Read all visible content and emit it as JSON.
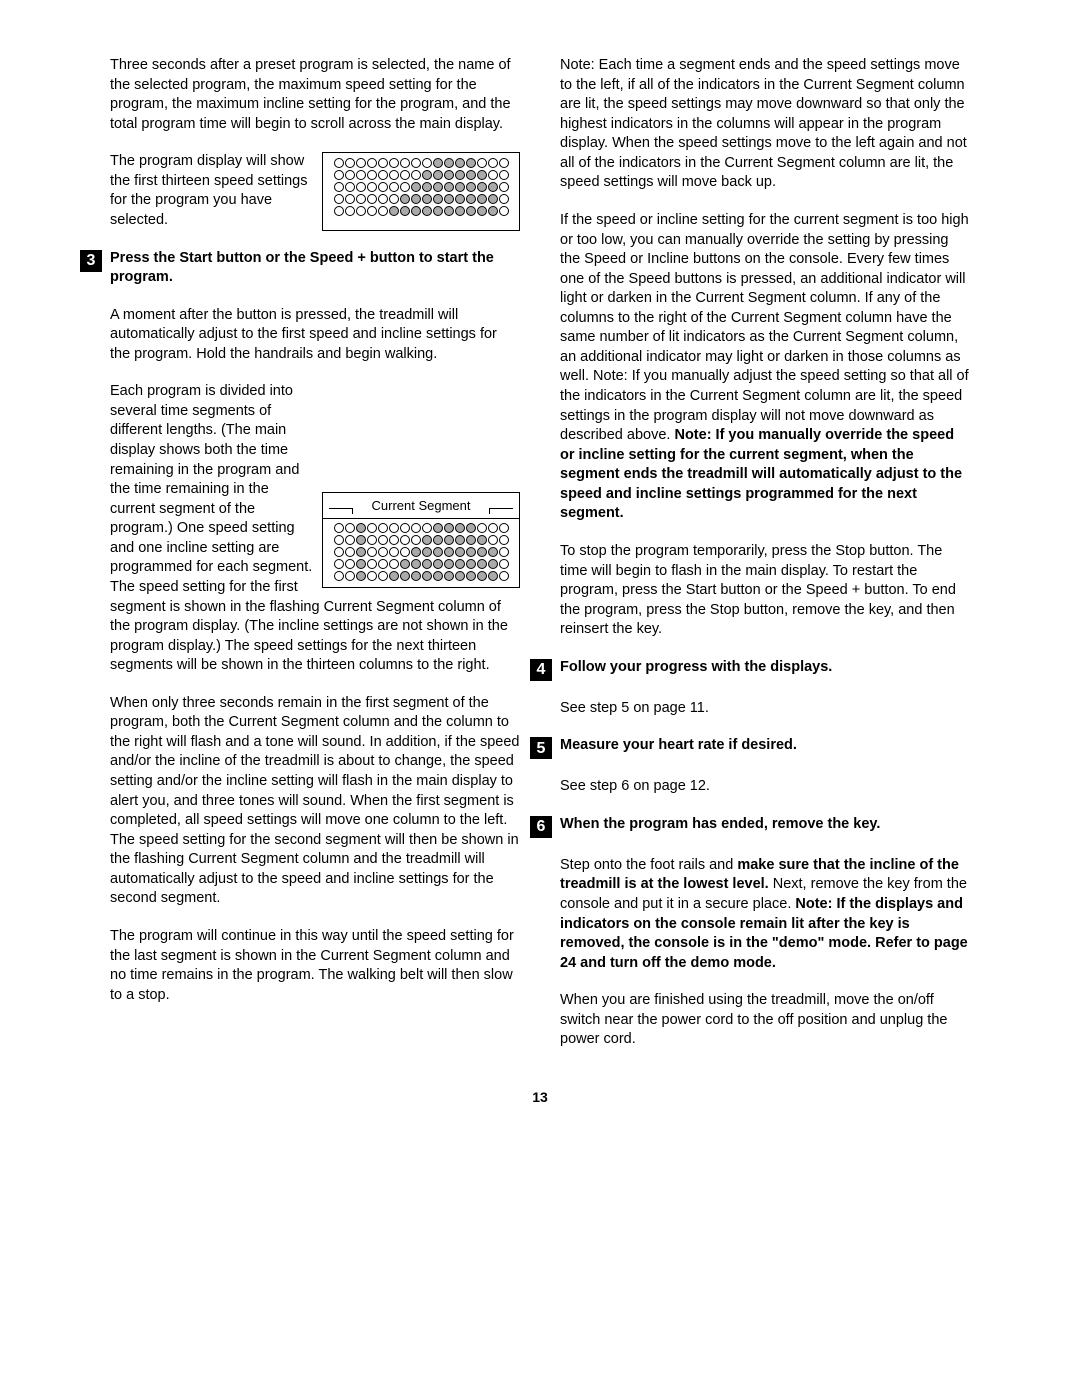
{
  "left": {
    "p1": "Three seconds after a preset program is selected, the name of the selected program, the maximum speed setting for the program, the maximum incline setting for the program, and the total program time will begin to scroll across the main display.",
    "p2": "The program display will show the first thirteen speed settings for the program you have selected.",
    "step3_title": "Press the Start button or the Speed + button to start the program.",
    "p3": "A moment after the button is pressed, the treadmill will automatically adjust to the first speed and incline settings for the program. Hold the handrails and begin walking.",
    "p4": "Each program is divided into several time segments of different lengths. (The main display shows both the time remaining in the program and the time remaining in the current segment of the program.) One speed setting and one incline setting are programmed for each segment. The speed setting for the first segment is shown in the flashing Current Segment column of the program display. (The incline settings are not shown in the program display.) The speed settings for the next thirteen segments will be shown in the thirteen columns to the right.",
    "p5": "When only three seconds remain in the first segment of the program, both the Current Segment column and the column to the right will flash and a tone will sound. In addition, if the speed and/or the incline of the treadmill is about to change, the speed setting and/or the incline setting will flash in the main display to alert you, and three tones will sound. When the first segment is completed, all speed settings will move one column to the left. The speed setting for the second segment will then be shown in the flashing Current Segment column and the treadmill will automatically adjust to the speed and incline settings for the second segment.",
    "p6": "The program will continue in this way until the speed setting for the last segment is shown in the Current Segment column and no time remains in the program. The walking belt will then slow to a stop.",
    "segment_label": "Current Segment"
  },
  "right": {
    "p1": "Note: Each time a segment ends and the speed settings move to the left, if all of the indicators in the Current Segment column are lit, the speed settings may move downward so that only the highest indicators in the columns will appear in the program display. When the speed settings move to the left again and not all of the indicators in the Current Segment column are lit, the speed settings will move back up.",
    "p2a": "If the speed or incline setting for the current segment is too high or too low, you can manually override the setting by pressing the Speed or Incline buttons on the console. Every few times one of the Speed buttons is pressed, an additional indicator will light or darken in the Current Segment column. If any of the columns to the right of the Current Segment column have the same number of lit indicators as the Current Segment column, an additional indicator may light or darken in those columns as well. Note: If you manually adjust the speed setting so that all of the indicators in the Current Segment column are lit, the speed settings in the program display will not move downward as described above. ",
    "p2b": "Note: If you manually override the speed or incline setting for the current segment, when the segment ends the treadmill will automatically adjust to the speed and incline settings programmed for the next segment.",
    "p3": "To stop the program temporarily, press the Stop button. The time will begin to flash in the main display. To restart the program, press the Start button or the Speed + button. To end the program, press the Stop button, remove the key, and then reinsert the key.",
    "step4_title": "Follow your progress with the displays.",
    "p4": "See step 5 on page 11.",
    "step5_title": "Measure your heart rate if desired.",
    "p5": "See step 6 on page 12.",
    "step6_title": "When the program has ended, remove the key.",
    "p6a": "Step onto the foot rails and ",
    "p6b": "make sure that the incline of the treadmill is at the lowest level.",
    "p6c": " Next, remove the key from the console and put it in a secure place. ",
    "p6d": "Note: If the displays and indicators on the console remain lit after the key is removed, the console is in the \"demo\" mode. Refer to page 24 and turn off the demo mode.",
    "p7": "When you are finished using the treadmill, move the on/off switch near the power cord to the off position and unplug the power cord."
  },
  "page": "13",
  "steps": {
    "s3": "3",
    "s4": "4",
    "s5": "5",
    "s6": "6"
  },
  "display1_rows": [
    "0000000001111000",
    "0000000011111100",
    "0000000111111110",
    "0000001111111110",
    "0000011111111110"
  ],
  "display2_rows": [
    "0010000001111000",
    "0010000011111100",
    "0010000111111110",
    "0010001111111110",
    "0010011111111110"
  ]
}
